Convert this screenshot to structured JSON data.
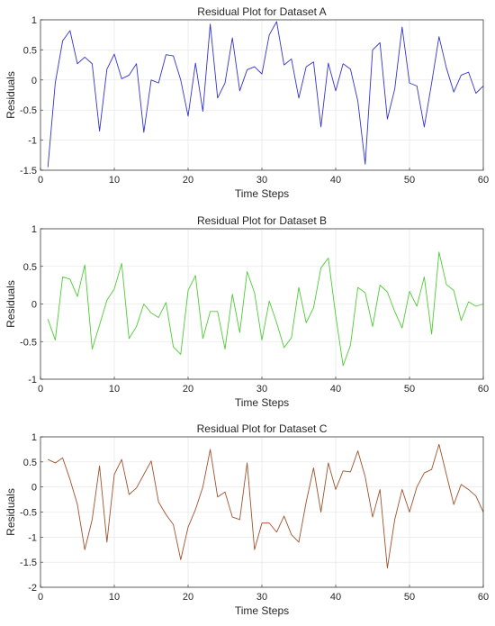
{
  "chart_data": [
    {
      "type": "line",
      "title": "Residual Plot for Dataset A",
      "xlabel": "Time Steps",
      "ylabel": "Residuals",
      "xlim": [
        0,
        60
      ],
      "ylim": [
        -1.5,
        1
      ],
      "xticks": [
        0,
        10,
        20,
        30,
        40,
        50,
        60
      ],
      "yticks": [
        1,
        0.5,
        0,
        -0.5,
        -1,
        -1.5
      ],
      "grid": true,
      "color": "#3333cc",
      "x": [
        1,
        2,
        3,
        4,
        5,
        6,
        7,
        8,
        9,
        10,
        11,
        12,
        13,
        14,
        15,
        16,
        17,
        18,
        19,
        20,
        21,
        22,
        23,
        24,
        25,
        26,
        27,
        28,
        29,
        30,
        31,
        32,
        33,
        34,
        35,
        36,
        37,
        38,
        39,
        40,
        41,
        42,
        43,
        44,
        45,
        46,
        47,
        48,
        49,
        50,
        51,
        52,
        53,
        54,
        55,
        56,
        57,
        58,
        59,
        60
      ],
      "y": [
        -1.45,
        -0.05,
        0.65,
        0.82,
        0.27,
        0.38,
        0.27,
        -0.85,
        0.18,
        0.43,
        0.02,
        0.08,
        0.27,
        -0.87,
        0.0,
        -0.05,
        0.42,
        0.4,
        0.0,
        -0.6,
        0.28,
        -0.52,
        0.93,
        -0.3,
        -0.05,
        0.7,
        -0.18,
        0.17,
        0.22,
        0.1,
        0.75,
        0.97,
        0.25,
        0.35,
        -0.3,
        0.22,
        0.3,
        -0.78,
        0.28,
        -0.18,
        0.27,
        0.18,
        -0.35,
        -1.4,
        0.5,
        0.62,
        -0.65,
        -0.15,
        0.88,
        -0.05,
        -0.1,
        -0.78,
        -0.05,
        0.72,
        0.2,
        -0.2,
        0.08,
        0.13,
        -0.22,
        -0.1
      ]
    },
    {
      "type": "line",
      "title": "Residual Plot for Dataset B",
      "xlabel": "Time Steps",
      "ylabel": "Residuals",
      "xlim": [
        0,
        60
      ],
      "ylim": [
        -1,
        1
      ],
      "xticks": [
        0,
        10,
        20,
        30,
        40,
        50,
        60
      ],
      "yticks": [
        1,
        0.5,
        0,
        -0.5,
        -1
      ],
      "grid": true,
      "color": "#4dcc33",
      "x": [
        1,
        2,
        3,
        4,
        5,
        6,
        7,
        8,
        9,
        10,
        11,
        12,
        13,
        14,
        15,
        16,
        17,
        18,
        19,
        20,
        21,
        22,
        23,
        24,
        25,
        26,
        27,
        28,
        29,
        30,
        31,
        32,
        33,
        34,
        35,
        36,
        37,
        38,
        39,
        40,
        41,
        42,
        43,
        44,
        45,
        46,
        47,
        48,
        49,
        50,
        51,
        52,
        53,
        54,
        55,
        56,
        57,
        58,
        59,
        60
      ],
      "y": [
        -0.2,
        -0.48,
        0.36,
        0.33,
        0.1,
        0.52,
        -0.6,
        -0.28,
        0.05,
        0.2,
        0.54,
        -0.46,
        -0.3,
        0.0,
        -0.12,
        -0.18,
        0.02,
        -0.57,
        -0.67,
        0.18,
        0.38,
        -0.46,
        -0.1,
        -0.1,
        -0.6,
        0.13,
        -0.38,
        0.43,
        0.15,
        -0.48,
        0.04,
        -0.25,
        -0.58,
        -0.45,
        0.22,
        -0.25,
        -0.05,
        0.48,
        0.61,
        -0.15,
        -0.82,
        -0.55,
        0.22,
        0.15,
        -0.3,
        0.25,
        0.16,
        -0.1,
        -0.32,
        0.17,
        -0.03,
        0.36,
        -0.4,
        0.69,
        0.26,
        0.18,
        -0.22,
        0.03,
        -0.03,
        0.0
      ]
    },
    {
      "type": "line",
      "title": "Residual Plot for Dataset C",
      "xlabel": "Time Steps",
      "ylabel": "Residuals",
      "xlim": [
        0,
        60
      ],
      "ylim": [
        -2,
        1
      ],
      "xticks": [
        0,
        10,
        20,
        30,
        40,
        50,
        60
      ],
      "yticks": [
        1,
        0.5,
        0,
        -0.5,
        -1,
        -1.5,
        -2
      ],
      "grid": true,
      "color": "#a0522d",
      "x": [
        1,
        2,
        3,
        4,
        5,
        6,
        7,
        8,
        9,
        10,
        11,
        12,
        13,
        14,
        15,
        16,
        17,
        18,
        19,
        20,
        21,
        22,
        23,
        24,
        25,
        26,
        27,
        28,
        29,
        30,
        31,
        32,
        33,
        34,
        35,
        36,
        37,
        38,
        39,
        40,
        41,
        42,
        43,
        44,
        45,
        46,
        47,
        48,
        49,
        50,
        51,
        52,
        53,
        54,
        55,
        56,
        57,
        58,
        59,
        60
      ],
      "y": [
        0.55,
        0.48,
        0.58,
        0.15,
        -0.35,
        -1.25,
        -0.65,
        0.42,
        -1.1,
        0.25,
        0.55,
        -0.15,
        -0.02,
        0.25,
        0.52,
        -0.3,
        -0.55,
        -0.75,
        -1.45,
        -0.8,
        -0.45,
        0.0,
        0.75,
        -0.2,
        -0.1,
        -0.6,
        -0.65,
        0.48,
        -1.25,
        -0.72,
        -0.72,
        -0.9,
        -0.58,
        -0.95,
        -1.1,
        -0.3,
        0.38,
        -0.5,
        0.48,
        -0.05,
        0.32,
        0.3,
        0.72,
        0.2,
        -0.6,
        -0.05,
        -1.62,
        -0.65,
        -0.05,
        -0.5,
        0.0,
        0.28,
        0.35,
        0.85,
        0.25,
        -0.35,
        0.05,
        -0.05,
        -0.18,
        -0.5
      ]
    }
  ]
}
